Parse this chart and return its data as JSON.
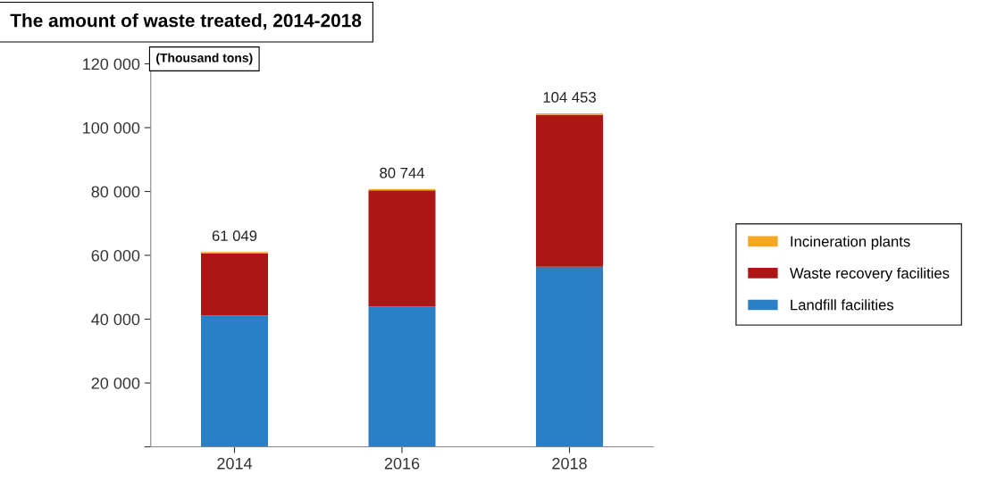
{
  "chart_data": {
    "type": "bar",
    "stacked": true,
    "title": "The amount of waste treated, 2014-2018",
    "ylabel": "(Thousand tons)",
    "categories": [
      "2014",
      "2016",
      "2018"
    ],
    "series": [
      {
        "name": "Landfill facilities",
        "color": "#2a7fc6",
        "values": [
          41200,
          44000,
          56400
        ]
      },
      {
        "name": "Waste recovery facilities",
        "color": "#ac1716",
        "values": [
          19449,
          36344,
          47553
        ]
      },
      {
        "name": "Incineration plants",
        "color": "#f5a623",
        "values": [
          400,
          400,
          500
        ]
      }
    ],
    "totals": [
      "61 049",
      "80 744",
      "104 453"
    ],
    "ylim": [
      0,
      120000
    ],
    "yticks": [
      {
        "value": 0,
        "label": null
      },
      {
        "value": 20000,
        "label": "20 000"
      },
      {
        "value": 40000,
        "label": "40 000"
      },
      {
        "value": 60000,
        "label": "60 000"
      },
      {
        "value": 80000,
        "label": "80 000"
      },
      {
        "value": 100000,
        "label": "100 000"
      },
      {
        "value": 120000,
        "label": "120 000"
      }
    ],
    "grid": false,
    "legend": "right"
  }
}
